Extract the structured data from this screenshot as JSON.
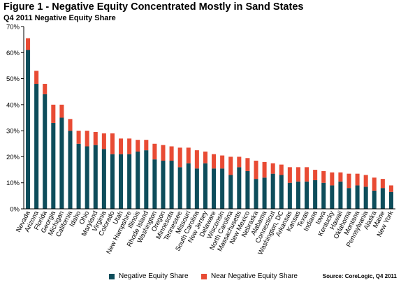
{
  "title": "Figure 1 - Negative Equity Concentrated Mostly in Sand States",
  "subtitle": "Q4 2011 Negative Equity Share",
  "source": "Source: CoreLogic, Q4 2011",
  "colors": {
    "negative": "#0E4D5B",
    "near_negative": "#E84B34"
  },
  "chart_data": {
    "type": "bar",
    "stacked": true,
    "title": "Figure 1 - Negative Equity Concentrated Mostly in Sand States",
    "subtitle": "Q4 2011 Negative Equity Share",
    "xlabel": "",
    "ylabel": "",
    "ylim": [
      0,
      70
    ],
    "yticks": [
      "0%",
      "10%",
      "20%",
      "30%",
      "40%",
      "50%",
      "60%",
      "70%"
    ],
    "legend_position": "bottom",
    "grid": false,
    "categories": [
      "Nevada",
      "Arizona",
      "Florida",
      "Georgia",
      "Michigan",
      "California",
      "Idaho",
      "Ohio",
      "Maryland",
      "Virginia",
      "Colorado",
      "Utah",
      "New Hampshire",
      "Illinois",
      "Rhode Island",
      "Washington",
      "Oregon",
      "Minnesota",
      "Tennessee",
      "Missouri",
      "South Carolina",
      "New Jersey",
      "Delaware",
      "Wisconsin",
      "North Carolina",
      "Massachusetts",
      "New Mexico",
      "Nebraska",
      "Alabama",
      "Connecticut",
      "Washington, DC",
      "Arkansas",
      "Kansas",
      "Texas",
      "Indiana",
      "Iowa",
      "Kentucky",
      "Hawaii",
      "Oklahoma",
      "Montana",
      "Pennsylvania",
      "Alaska",
      "Maine",
      "New York"
    ],
    "series": [
      {
        "name": "Negative Equity Share",
        "values": [
          61,
          48,
          44,
          33,
          35,
          30,
          25,
          24,
          24.5,
          23,
          21,
          21,
          21,
          22,
          22.5,
          19,
          18.5,
          18.5,
          16,
          17.5,
          15.5,
          17.5,
          15.5,
          15.5,
          13,
          16,
          14.5,
          11.5,
          12,
          13.5,
          13,
          10,
          10.5,
          10.5,
          11,
          10,
          9,
          10.5,
          8,
          9,
          8.5,
          7,
          8,
          6.5
        ]
      },
      {
        "name": "Near Negative Equity Share",
        "values": [
          4.5,
          5,
          4,
          7,
          5,
          4.5,
          5,
          6,
          5,
          6,
          8,
          6,
          6,
          4.5,
          4,
          6,
          6,
          5.5,
          7.5,
          6,
          7,
          4.5,
          5.5,
          5,
          7,
          4,
          5,
          7,
          6,
          4,
          4,
          6,
          5.5,
          5.5,
          4,
          4.5,
          5,
          3.5,
          5.5,
          4.5,
          4.5,
          5,
          3.5,
          2.5
        ]
      }
    ]
  }
}
